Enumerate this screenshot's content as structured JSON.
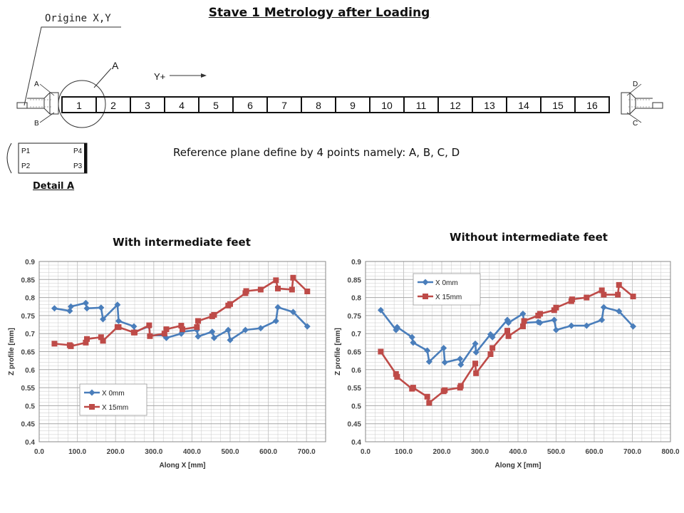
{
  "page": {
    "title": "Stave 1 Metrology after Loading",
    "origin_label": "Origine X,Y",
    "circle_label": "A",
    "direction_label": "Y+",
    "detail_label": "Detail A",
    "reference_note": "Reference  plane define by 4 points namely: A, B, C, D",
    "corner_labels": [
      "A",
      "B",
      "C",
      "D"
    ],
    "module_labels": [
      "1",
      "2",
      "3",
      "4",
      "5",
      "6",
      "7",
      "8",
      "9",
      "10",
      "11",
      "12",
      "13",
      "14",
      "15",
      "16"
    ],
    "detail_points": [
      "P1",
      "P4",
      "P2",
      "P3"
    ]
  },
  "colors": {
    "series_x0": "#4a7ebb",
    "series_x15": "#be4b48",
    "grid": "#c8c8c8"
  },
  "chart_data": [
    {
      "type": "line",
      "title": "With intermediate feet",
      "xlabel": "Along X [mm]",
      "ylabel": "Z profile [mm]",
      "xlim": [
        0,
        750
      ],
      "ylim": [
        0.4,
        0.9
      ],
      "x_ticks": [
        "0.0",
        "100.0",
        "200.0",
        "300.0",
        "400.0",
        "500.0",
        "600.0",
        "700.0"
      ],
      "y_ticks": [
        "0.4",
        "0.45",
        "0.5",
        "0.55",
        "0.6",
        "0.65",
        "0.7",
        "0.75",
        "0.8",
        "0.85",
        "0.9"
      ],
      "legend_position": "bottom-left",
      "grid": true,
      "series": [
        {
          "name": "X 0mm",
          "marker": "diamond",
          "points": [
            [
              40,
              0.77
            ],
            [
              80,
              0.763
            ],
            [
              83,
              0.775
            ],
            [
              122,
              0.785
            ],
            [
              125,
              0.77
            ],
            [
              162,
              0.772
            ],
            [
              167,
              0.74
            ],
            [
              205,
              0.78
            ],
            [
              208,
              0.735
            ],
            [
              248,
              0.72
            ],
            [
              250,
              0.705
            ],
            [
              288,
              0.72
            ],
            [
              290,
              0.695
            ],
            [
              328,
              0.695
            ],
            [
              333,
              0.688
            ],
            [
              372,
              0.7
            ],
            [
              375,
              0.705
            ],
            [
              413,
              0.71
            ],
            [
              416,
              0.692
            ],
            [
              453,
              0.705
            ],
            [
              458,
              0.688
            ],
            [
              495,
              0.71
            ],
            [
              500,
              0.682
            ],
            [
              540,
              0.71
            ],
            [
              580,
              0.715
            ],
            [
              620,
              0.735
            ],
            [
              625,
              0.773
            ],
            [
              665,
              0.76
            ],
            [
              702,
              0.72
            ]
          ]
        },
        {
          "name": "X 15mm",
          "marker": "square",
          "points": [
            [
              40,
              0.672
            ],
            [
              80,
              0.668
            ],
            [
              83,
              0.665
            ],
            [
              122,
              0.675
            ],
            [
              125,
              0.685
            ],
            [
              162,
              0.69
            ],
            [
              167,
              0.68
            ],
            [
              205,
              0.718
            ],
            [
              208,
              0.718
            ],
            [
              248,
              0.703
            ],
            [
              250,
              0.703
            ],
            [
              288,
              0.723
            ],
            [
              290,
              0.693
            ],
            [
              328,
              0.7
            ],
            [
              333,
              0.712
            ],
            [
              372,
              0.722
            ],
            [
              375,
              0.712
            ],
            [
              413,
              0.718
            ],
            [
              416,
              0.735
            ],
            [
              453,
              0.748
            ],
            [
              458,
              0.752
            ],
            [
              495,
              0.778
            ],
            [
              500,
              0.782
            ],
            [
              540,
              0.812
            ],
            [
              542,
              0.818
            ],
            [
              580,
              0.822
            ],
            [
              620,
              0.848
            ],
            [
              625,
              0.825
            ],
            [
              662,
              0.822
            ],
            [
              665,
              0.855
            ],
            [
              702,
              0.817
            ]
          ]
        }
      ]
    },
    {
      "type": "line",
      "title": "Without intermediate feet",
      "xlabel": "Along X [mm]",
      "ylabel": "Z profile [mm]",
      "xlim": [
        0,
        800
      ],
      "ylim": [
        0.4,
        0.9
      ],
      "x_ticks": [
        "0.0",
        "100.0",
        "200.0",
        "300.0",
        "400.0",
        "500.0",
        "600.0",
        "700.0",
        "800.0"
      ],
      "y_ticks": [
        "0.4",
        "0.45",
        "0.5",
        "0.55",
        "0.6",
        "0.65",
        "0.7",
        "0.75",
        "0.8",
        "0.85",
        "0.9"
      ],
      "legend_position": "top-left",
      "grid": true,
      "series": [
        {
          "name": "X 0mm",
          "marker": "diamond",
          "points": [
            [
              40,
              0.765
            ],
            [
              80,
              0.71
            ],
            [
              83,
              0.718
            ],
            [
              122,
              0.69
            ],
            [
              125,
              0.675
            ],
            [
              162,
              0.653
            ],
            [
              167,
              0.622
            ],
            [
              205,
              0.66
            ],
            [
              208,
              0.62
            ],
            [
              248,
              0.63
            ],
            [
              250,
              0.614
            ],
            [
              288,
              0.672
            ],
            [
              290,
              0.648
            ],
            [
              328,
              0.698
            ],
            [
              333,
              0.69
            ],
            [
              372,
              0.738
            ],
            [
              375,
              0.73
            ],
            [
              413,
              0.755
            ],
            [
              416,
              0.73
            ],
            [
              453,
              0.732
            ],
            [
              458,
              0.73
            ],
            [
              495,
              0.738
            ],
            [
              500,
              0.71
            ],
            [
              540,
              0.722
            ],
            [
              580,
              0.722
            ],
            [
              620,
              0.738
            ],
            [
              625,
              0.773
            ],
            [
              665,
              0.762
            ],
            [
              702,
              0.72
            ]
          ]
        },
        {
          "name": "X 15mm",
          "marker": "square",
          "points": [
            [
              40,
              0.65
            ],
            [
              80,
              0.588
            ],
            [
              83,
              0.58
            ],
            [
              122,
              0.547
            ],
            [
              125,
              0.55
            ],
            [
              162,
              0.525
            ],
            [
              167,
              0.508
            ],
            [
              205,
              0.54
            ],
            [
              208,
              0.543
            ],
            [
              248,
              0.55
            ],
            [
              250,
              0.555
            ],
            [
              288,
              0.617
            ],
            [
              290,
              0.59
            ],
            [
              328,
              0.643
            ],
            [
              333,
              0.66
            ],
            [
              372,
              0.708
            ],
            [
              375,
              0.693
            ],
            [
              413,
              0.72
            ],
            [
              416,
              0.735
            ],
            [
              453,
              0.75
            ],
            [
              458,
              0.755
            ],
            [
              495,
              0.765
            ],
            [
              500,
              0.772
            ],
            [
              540,
              0.79
            ],
            [
              542,
              0.795
            ],
            [
              580,
              0.8
            ],
            [
              620,
              0.82
            ],
            [
              625,
              0.808
            ],
            [
              662,
              0.808
            ],
            [
              665,
              0.835
            ],
            [
              702,
              0.803
            ]
          ]
        }
      ]
    }
  ]
}
